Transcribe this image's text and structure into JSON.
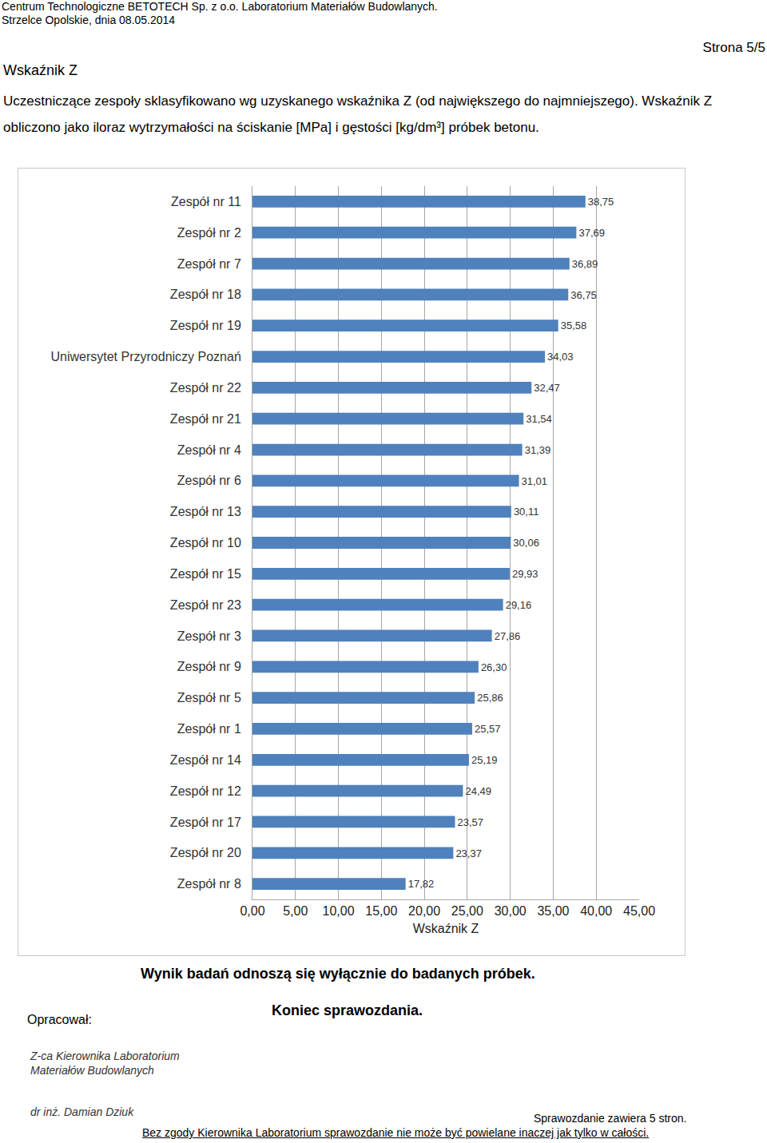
{
  "page": {
    "header": [
      "Centrum Technologiczne BETOTECH Sp. z o.o. Laboratorium Materiałów Budowlanych.",
      "Strzelce Opolskie, dnia 08.05.2014"
    ],
    "page_number": "Strona 5/5",
    "section_title": "Wskaźnik Z",
    "description": "Uczestniczące zespoły sklasyfikowano wg uzyskanego wskaźnika Z (od największego do najmniejszego). Wskaźnik Z obliczono jako iloraz wytrzymałości na ściskanie [MPa] i gęstości [kg/dm³] próbek betonu.",
    "note": "Wynik badań odnoszą się wyłącznie do badanych próbek.",
    "prepared_by": "Opracował:",
    "end": "Koniec sprawozdania.",
    "signature": [
      "Z-ca Kierownika Laboratorium",
      "Materiałów Budowlanych",
      "dr inż. Damian Dziuk"
    ],
    "pages_info": "Sprawozdanie zawiera 5 stron.",
    "copyright": "Bez zgody Kierownika Laboratorium sprawozdanie nie może być powielane inaczej jak tylko w całości."
  },
  "chart_data": {
    "type": "bar",
    "orientation": "horizontal",
    "categories": [
      "Zespół nr 11",
      "Zespół nr 2",
      "Zespół nr 7",
      "Zespół nr 18",
      "Zespół nr 19",
      "Uniwersytet Przyrodniczy Poznań",
      "Zespół nr 22",
      "Zespół nr 21",
      "Zespół nr 4",
      "Zespół nr 6",
      "Zespół nr 13",
      "Zespół nr 10",
      "Zespół nr 15",
      "Zespół nr 23",
      "Zespół nr 3",
      "Zespół nr 9",
      "Zespół nr 5",
      "Zespół nr 1",
      "Zespół nr 14",
      "Zespół nr 12",
      "Zespół nr 17",
      "Zespół nr 20",
      "Zespół nr 8"
    ],
    "values": [
      38.75,
      37.69,
      36.89,
      36.75,
      35.58,
      34.03,
      32.47,
      31.54,
      31.39,
      31.01,
      30.11,
      30.06,
      29.93,
      29.16,
      27.86,
      26.3,
      25.86,
      25.57,
      25.19,
      24.49,
      23.57,
      23.37,
      17.82
    ],
    "value_labels": [
      "38,75",
      "37,69",
      "36,89",
      "36,75",
      "35,58",
      "34,03",
      "32,47",
      "31,54",
      "31,39",
      "31,01",
      "30,11",
      "30,06",
      "29,93",
      "29,16",
      "27,86",
      "26,30",
      "25,86",
      "25,57",
      "25,19",
      "24,49",
      "23,57",
      "23,37",
      "17,82"
    ],
    "data_labels": true,
    "color": "#4f81bd",
    "x_label": "Wskaźnik Z",
    "xlim": [
      0,
      45
    ],
    "xticks": [
      {
        "value": 0,
        "label": "0,00"
      },
      {
        "value": 5,
        "label": "5,00"
      },
      {
        "value": 10,
        "label": "10,00"
      },
      {
        "value": 15,
        "label": "15,00"
      },
      {
        "value": 20,
        "label": "20,00"
      },
      {
        "value": 25,
        "label": "25,00"
      },
      {
        "value": 30,
        "label": "30,00"
      },
      {
        "value": 35,
        "label": "35,00"
      },
      {
        "value": 40,
        "label": "40,00"
      },
      {
        "value": 45,
        "label": "45,00"
      }
    ],
    "grid": true
  }
}
